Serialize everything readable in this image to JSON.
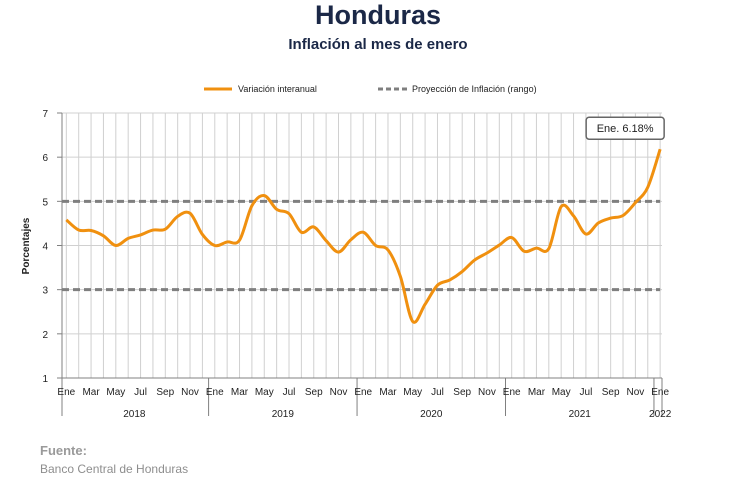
{
  "header": {
    "title": "Honduras",
    "subtitle": "Inflación al mes de enero"
  },
  "source": {
    "heading": "Fuente:",
    "text": "Banco Central de Honduras"
  },
  "colors": {
    "series": "#f0900f",
    "projection": "#7f7f7f",
    "grid": "#d0d0d0",
    "axis": "#808080",
    "title": "#1b2847"
  },
  "chart_data": {
    "type": "line",
    "title": "Honduras",
    "subtitle": "Inflación al mes de enero",
    "ylabel": "Porcentajes",
    "xlabel": "",
    "ylim": [
      1,
      7
    ],
    "yticks": [
      1,
      2,
      3,
      4,
      5,
      6,
      7
    ],
    "grid": true,
    "legend_position": "top",
    "month_tick_labels": [
      "Ene",
      "Mar",
      "May",
      "Jul",
      "Sep",
      "Nov",
      "Ene",
      "Mar",
      "May",
      "Jul",
      "Sep",
      "Nov",
      "Ene",
      "Mar",
      "May",
      "Jul",
      "Sep",
      "Nov",
      "Ene",
      "Mar",
      "May",
      "Jul",
      "Sep",
      "Nov",
      "Ene"
    ],
    "years": [
      "2018",
      "2019",
      "2020",
      "2021",
      "2022"
    ],
    "series": [
      {
        "name": "Variación interanual",
        "style": "solid",
        "x": [
          "2018-01",
          "2018-02",
          "2018-03",
          "2018-04",
          "2018-05",
          "2018-06",
          "2018-07",
          "2018-08",
          "2018-09",
          "2018-10",
          "2018-11",
          "2018-12",
          "2019-01",
          "2019-02",
          "2019-03",
          "2019-04",
          "2019-05",
          "2019-06",
          "2019-07",
          "2019-08",
          "2019-09",
          "2019-10",
          "2019-11",
          "2019-12",
          "2020-01",
          "2020-02",
          "2020-03",
          "2020-04",
          "2020-05",
          "2020-06",
          "2020-07",
          "2020-08",
          "2020-09",
          "2020-10",
          "2020-11",
          "2020-12",
          "2021-01",
          "2021-02",
          "2021-03",
          "2021-04",
          "2021-05",
          "2021-06",
          "2021-07",
          "2021-08",
          "2021-09",
          "2021-10",
          "2021-11",
          "2021-12",
          "2022-01"
        ],
        "values": [
          4.58,
          4.35,
          4.34,
          4.22,
          4.0,
          4.16,
          4.24,
          4.35,
          4.37,
          4.66,
          4.73,
          4.25,
          4.0,
          4.08,
          4.12,
          4.9,
          5.13,
          4.82,
          4.72,
          4.3,
          4.42,
          4.11,
          3.85,
          4.13,
          4.3,
          4.0,
          3.9,
          3.3,
          2.28,
          2.67,
          3.1,
          3.22,
          3.41,
          3.67,
          3.83,
          4.01,
          4.18,
          3.87,
          3.94,
          3.93,
          4.88,
          4.67,
          4.26,
          4.51,
          4.62,
          4.68,
          4.97,
          5.32,
          6.18
        ]
      },
      {
        "name": "Proyección de Inflación (rango)",
        "style": "dashed",
        "bands": [
          5,
          3
        ]
      }
    ],
    "annotations": [
      {
        "text": "Ene. 6.18%",
        "x": "2022-01",
        "y": 6.18
      }
    ]
  }
}
